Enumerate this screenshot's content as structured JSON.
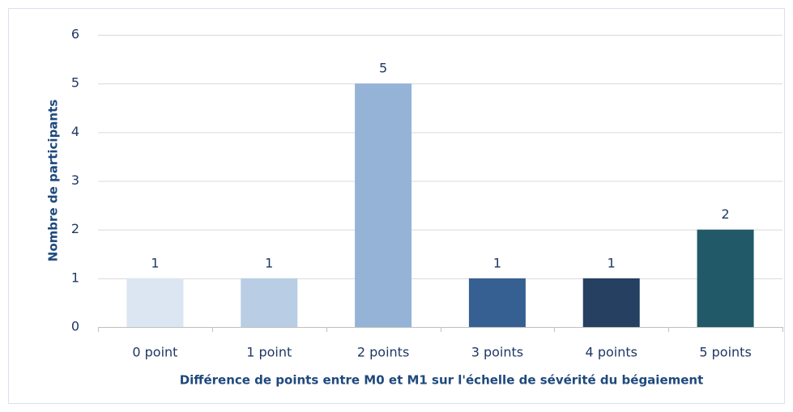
{
  "chart_data": {
    "type": "bar",
    "categories": [
      "0 point",
      "1 point",
      "2 points",
      "3 points",
      "4 points",
      "5 points"
    ],
    "values": [
      1,
      1,
      5,
      1,
      1,
      2
    ],
    "colors": [
      "#dce6f2",
      "#b9cde5",
      "#95b3d7",
      "#376092",
      "#254061",
      "#215968"
    ],
    "xlabel": "Différence de points entre M0 et M1 sur l'échelle de sévérité du bégaiement",
    "ylabel": "Nombre de participants",
    "ylim": [
      0,
      6
    ],
    "yticks": [
      0,
      1,
      2,
      3,
      4,
      5,
      6
    ],
    "grid": true,
    "data_labels": true
  }
}
